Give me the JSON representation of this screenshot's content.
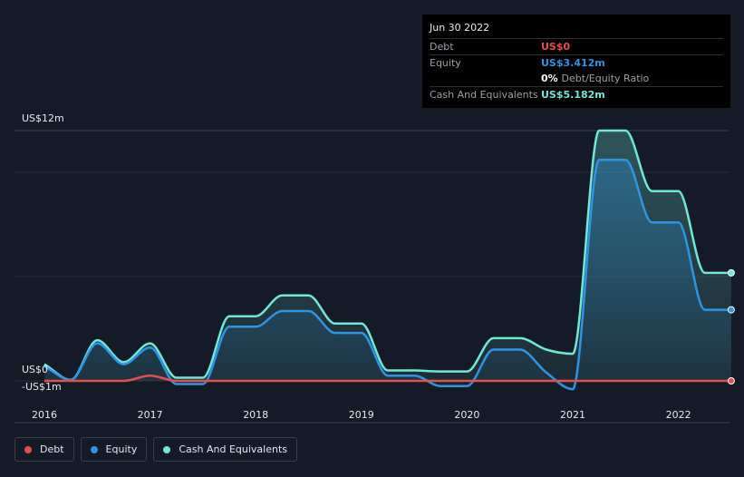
{
  "tooltip": {
    "date": "Jun 30 2022",
    "rows": [
      {
        "label": "Debt",
        "value": "US$0",
        "color": "#e64d4d"
      },
      {
        "label": "Equity",
        "value": "US$3.412m",
        "color": "#2d95e3"
      },
      {
        "label": "",
        "value": "0%",
        "suffix": "Debt/Equity Ratio",
        "color": "#ffffff"
      },
      {
        "label": "Cash And Equivalents",
        "value": "US$5.182m",
        "color": "#71e7d6"
      }
    ]
  },
  "legend": [
    {
      "label": "Debt",
      "color": "#e64d4d"
    },
    {
      "label": "Equity",
      "color": "#2d95e3"
    },
    {
      "label": "Cash And Equivalents",
      "color": "#71e7d6"
    }
  ],
  "chart_data": {
    "type": "area",
    "title": "",
    "xlabel": "",
    "ylabel": "",
    "x_ticks": [
      2016,
      2017,
      2018,
      2019,
      2020,
      2021,
      2022
    ],
    "x_range": [
      2016.0,
      2022.5
    ],
    "ylim": [
      -1,
      12
    ],
    "y_tick_labels": [
      {
        "value": 12,
        "label": "US$12m"
      },
      {
        "value": 0,
        "label": "US$0"
      },
      {
        "value": -1,
        "label": "-US$1m"
      }
    ],
    "gridlines": [
      12,
      10,
      5,
      0
    ],
    "series": [
      {
        "name": "Debt",
        "color": "#e64d4d",
        "points": [
          [
            2016.0,
            0.0
          ],
          [
            2016.25,
            0.0
          ],
          [
            2016.75,
            0.0
          ],
          [
            2017.0,
            0.25
          ],
          [
            2017.25,
            0.0
          ],
          [
            2018.0,
            0.0
          ],
          [
            2019.0,
            0.0
          ],
          [
            2020.0,
            0.0
          ],
          [
            2021.0,
            0.0
          ],
          [
            2022.0,
            0.0
          ],
          [
            2022.5,
            0.0
          ]
        ]
      },
      {
        "name": "Equity",
        "color": "#2d95e3",
        "points": [
          [
            2016.0,
            0.7
          ],
          [
            2016.25,
            0.05
          ],
          [
            2016.5,
            1.8
          ],
          [
            2016.75,
            0.8
          ],
          [
            2017.0,
            1.6
          ],
          [
            2017.25,
            -0.15
          ],
          [
            2017.5,
            -0.15
          ],
          [
            2017.75,
            2.6
          ],
          [
            2018.0,
            2.6
          ],
          [
            2018.25,
            3.35
          ],
          [
            2018.5,
            3.35
          ],
          [
            2018.75,
            2.3
          ],
          [
            2019.0,
            2.3
          ],
          [
            2019.25,
            0.25
          ],
          [
            2019.5,
            0.25
          ],
          [
            2019.75,
            -0.25
          ],
          [
            2020.0,
            -0.25
          ],
          [
            2020.25,
            1.5
          ],
          [
            2020.5,
            1.5
          ],
          [
            2020.75,
            0.4
          ],
          [
            2021.0,
            -0.4
          ],
          [
            2021.25,
            10.6
          ],
          [
            2021.5,
            10.6
          ],
          [
            2021.75,
            7.6
          ],
          [
            2022.0,
            7.6
          ],
          [
            2022.25,
            3.41
          ],
          [
            2022.5,
            3.41
          ]
        ]
      },
      {
        "name": "Cash And Equivalents",
        "color": "#71e7d6",
        "points": [
          [
            2016.0,
            0.8
          ],
          [
            2016.25,
            0.05
          ],
          [
            2016.5,
            1.95
          ],
          [
            2016.75,
            0.9
          ],
          [
            2017.0,
            1.8
          ],
          [
            2017.25,
            0.15
          ],
          [
            2017.5,
            0.15
          ],
          [
            2017.75,
            3.1
          ],
          [
            2018.0,
            3.1
          ],
          [
            2018.25,
            4.1
          ],
          [
            2018.5,
            4.1
          ],
          [
            2018.75,
            2.75
          ],
          [
            2019.0,
            2.75
          ],
          [
            2019.25,
            0.5
          ],
          [
            2019.5,
            0.5
          ],
          [
            2019.75,
            0.45
          ],
          [
            2020.0,
            0.45
          ],
          [
            2020.25,
            2.05
          ],
          [
            2020.5,
            2.05
          ],
          [
            2020.75,
            1.5
          ],
          [
            2021.0,
            1.3
          ],
          [
            2021.25,
            12.0
          ],
          [
            2021.5,
            12.0
          ],
          [
            2021.75,
            9.1
          ],
          [
            2022.0,
            9.1
          ],
          [
            2022.25,
            5.18
          ],
          [
            2022.5,
            5.18
          ]
        ]
      }
    ]
  }
}
